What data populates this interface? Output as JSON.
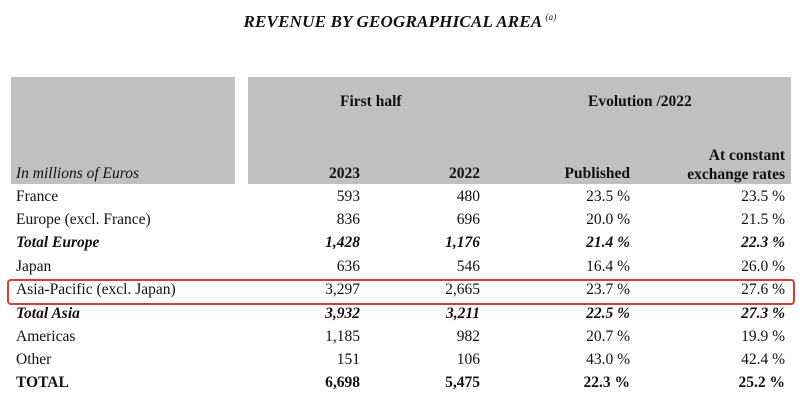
{
  "title": "REVENUE BY GEOGRAPHICAL AREA",
  "title_note": "(a)",
  "header": {
    "unit": "In millions of Euros",
    "first_half": "First half",
    "evolution": "Evolution /2022",
    "col_2023": "2023",
    "col_2022": "2022",
    "published": "Published",
    "constant_1": "At constant",
    "constant_2": "exchange rates"
  },
  "rows": [
    {
      "label": "France",
      "v2023": "593",
      "v2022": "480",
      "published": "23.5 %",
      "constant": "23.5 %"
    },
    {
      "label": "Europe (excl. France)",
      "v2023": "836",
      "v2022": "696",
      "published": "20.0 %",
      "constant": "21.5 %"
    },
    {
      "label": "Total Europe",
      "v2023": "1,428",
      "v2022": "1,176",
      "published": "21.4 %",
      "constant": "22.3 %"
    },
    {
      "label": "Japan",
      "v2023": "636",
      "v2022": "546",
      "published": "16.4 %",
      "constant": "26.0 %"
    },
    {
      "label": "Asia-Pacific (excl. Japan)",
      "v2023": "3,297",
      "v2022": "2,665",
      "published": "23.7 %",
      "constant": "27.6 %"
    },
    {
      "label": "Total Asia",
      "v2023": "3,932",
      "v2022": "3,211",
      "published": "22.5 %",
      "constant": "27.3 %"
    },
    {
      "label": "Americas",
      "v2023": "1,185",
      "v2022": "982",
      "published": "20.7 %",
      "constant": "19.9 %"
    },
    {
      "label": "Other",
      "v2023": "151",
      "v2022": "106",
      "published": "43.0 %",
      "constant": "42.4 %"
    },
    {
      "label": "TOTAL",
      "v2023": "6,698",
      "v2022": "5,475",
      "published": "22.3 %",
      "constant": "25.2 %"
    }
  ],
  "colors": {
    "header_bg": "#c0c0c0",
    "highlight": "#e03a32"
  }
}
